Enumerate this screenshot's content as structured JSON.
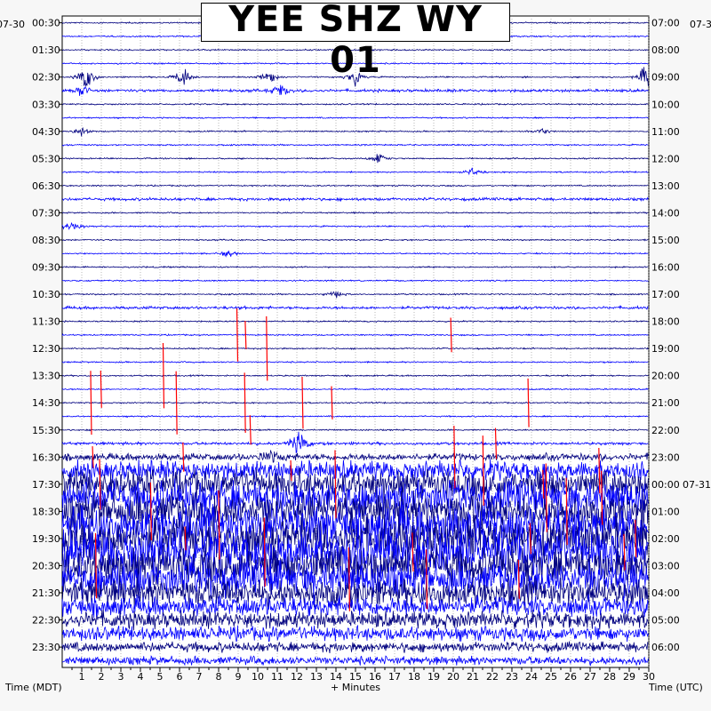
{
  "header": {
    "title": "YEE SHZ WY 01"
  },
  "axes": {
    "left_title": "Time (MDT)",
    "bottom_title": "+ Minutes",
    "right_title": "Time (UTC)",
    "left_date": "07-30",
    "right_date_top": "07-3",
    "right_date_change": "07-31"
  },
  "chart_data": {
    "type": "heatmap",
    "title": "YEE SHZ WY 01",
    "xlabel": "+ Minutes",
    "ylabel_left": "Time (MDT)",
    "ylabel_right": "Time (UTC)",
    "xlim": [
      0,
      30
    ],
    "x_ticks": [
      1,
      2,
      3,
      4,
      5,
      6,
      7,
      8,
      9,
      10,
      11,
      12,
      13,
      14,
      15,
      16,
      17,
      18,
      19,
      20,
      21,
      22,
      23,
      24,
      25,
      26,
      27,
      28,
      29,
      30
    ],
    "rows_per_hour": 2,
    "row_count": 48,
    "y_ticks_left": [
      "00:30",
      "01:30",
      "02:30",
      "03:30",
      "04:30",
      "05:30",
      "06:30",
      "07:30",
      "08:30",
      "09:30",
      "10:30",
      "11:30",
      "12:30",
      "13:30",
      "14:30",
      "15:30",
      "16:30",
      "17:30",
      "18:30",
      "19:30",
      "20:30",
      "21:30",
      "22:30",
      "23:30"
    ],
    "y_ticks_right": [
      "07:00",
      "08:00",
      "09:00",
      "10:00",
      "11:00",
      "12:00",
      "13:00",
      "14:00",
      "15:00",
      "16:00",
      "17:00",
      "18:00",
      "19:00",
      "20:00",
      "21:00",
      "22:00",
      "23:00",
      "00:00",
      "01:00",
      "02:00",
      "03:00",
      "04:00",
      "05:00",
      "06:00"
    ],
    "trace_colors": [
      "#00007f",
      "#0000ff"
    ],
    "clipped_color": "#ff0000",
    "grid": true,
    "high_activity_rows": [
      23,
      42
    ],
    "amplitude_by_row": [
      1,
      1,
      1,
      1,
      1,
      2,
      1,
      1,
      1,
      1,
      1,
      1,
      1,
      2,
      1,
      1,
      1,
      1,
      1,
      1,
      1,
      2,
      1,
      1,
      1,
      1,
      1,
      1,
      1,
      1,
      1,
      2,
      5,
      14,
      20,
      24,
      26,
      28,
      30,
      30,
      28,
      24,
      20,
      14,
      12,
      10,
      7,
      6
    ],
    "events": [
      {
        "row": 4,
        "minute": 1.2,
        "amp": 18
      },
      {
        "row": 4,
        "minute": 6.2,
        "amp": 14
      },
      {
        "row": 4,
        "minute": 10.6,
        "amp": 9
      },
      {
        "row": 4,
        "minute": 15.0,
        "amp": 10
      },
      {
        "row": 4,
        "minute": 29.9,
        "amp": 22
      },
      {
        "row": 5,
        "minute": 1.0,
        "amp": 8
      },
      {
        "row": 5,
        "minute": 11.2,
        "amp": 8
      },
      {
        "row": 8,
        "minute": 1.0,
        "amp": 6
      },
      {
        "row": 8,
        "minute": 24.5,
        "amp": 6
      },
      {
        "row": 10,
        "minute": 16.2,
        "amp": 7
      },
      {
        "row": 11,
        "minute": 21.0,
        "amp": 5
      },
      {
        "row": 15,
        "minute": 0.5,
        "amp": 9
      },
      {
        "row": 17,
        "minute": 8.5,
        "amp": 4
      },
      {
        "row": 20,
        "minute": 14.0,
        "amp": 4
      },
      {
        "row": 31,
        "minute": 12.1,
        "amp": 20
      },
      {
        "row": 32,
        "minute": 10.7,
        "amp": 6
      },
      {
        "row": 34,
        "minute": 4.5,
        "amp": 5
      }
    ]
  }
}
